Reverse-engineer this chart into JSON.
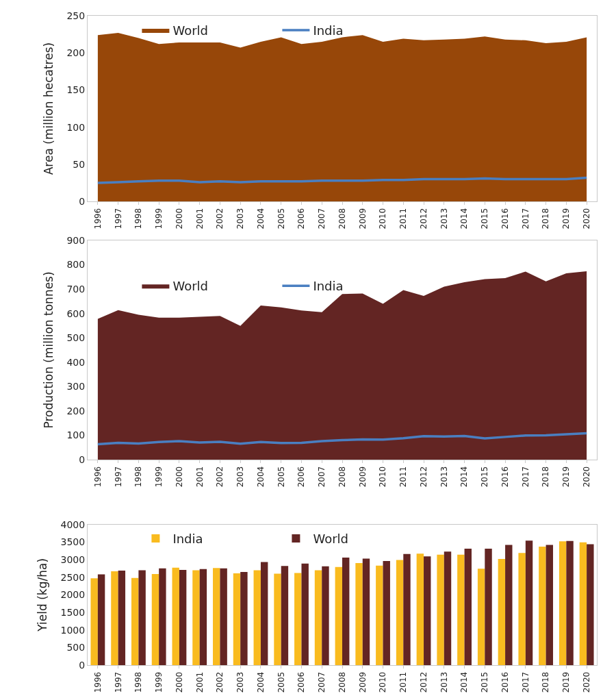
{
  "chart_data": [
    {
      "type": "area",
      "ylabel": "Area (million hecatres)",
      "categories": [
        "1996",
        "1997",
        "1998",
        "1999",
        "2000",
        "2001",
        "2002",
        "2003",
        "2004",
        "2005",
        "2006",
        "2007",
        "2008",
        "2009",
        "2010",
        "2011",
        "2012",
        "2013",
        "2014",
        "2015",
        "2016",
        "2017",
        "2018",
        "2019",
        "2020"
      ],
      "ylim": [
        0,
        250
      ],
      "yticks": [
        0,
        50,
        100,
        150,
        200,
        250
      ],
      "legend": "top left",
      "series": [
        {
          "name": "World",
          "color": "#974709",
          "values": [
            224,
            227,
            220,
            212,
            214,
            214,
            214,
            207,
            215,
            221,
            212,
            215,
            221,
            224,
            215,
            219,
            217,
            218,
            219,
            222,
            218,
            217,
            213,
            215,
            221
          ]
        },
        {
          "name": "India",
          "type": "line",
          "color": "#4a7fc1",
          "values": [
            25,
            26,
            27,
            28,
            28,
            26,
            27,
            26,
            27,
            27,
            27,
            28,
            28,
            28,
            29,
            29,
            30,
            30,
            30,
            31,
            30,
            30,
            30,
            30,
            32
          ]
        }
      ]
    },
    {
      "type": "area",
      "ylabel": "Production (million tonnes)",
      "categories": [
        "1996",
        "1997",
        "1998",
        "1999",
        "2000",
        "2001",
        "2002",
        "2003",
        "2004",
        "2005",
        "2006",
        "2007",
        "2008",
        "2009",
        "2010",
        "2011",
        "2012",
        "2013",
        "2014",
        "2015",
        "2016",
        "2017",
        "2018",
        "2019",
        "2020"
      ],
      "ylim": [
        0,
        900
      ],
      "yticks": [
        0,
        100,
        200,
        300,
        400,
        500,
        600,
        700,
        800,
        900
      ],
      "legend": "top left",
      "series": [
        {
          "name": "World",
          "color": "#632523",
          "values": [
            578,
            614,
            595,
            583,
            583,
            586,
            590,
            549,
            633,
            625,
            612,
            605,
            680,
            682,
            640,
            696,
            672,
            710,
            728,
            741,
            745,
            772,
            732,
            765,
            773
          ]
        },
        {
          "name": "India",
          "type": "line",
          "color": "#4a7fc1",
          "values": [
            63,
            69,
            66,
            72,
            76,
            70,
            73,
            65,
            72,
            68,
            69,
            76,
            80,
            83,
            82,
            88,
            96,
            95,
            97,
            87,
            93,
            99,
            100,
            104,
            108
          ]
        }
      ]
    },
    {
      "type": "bar",
      "ylabel": "Yield (kg/ha)",
      "categories": [
        "1996",
        "1997",
        "1998",
        "1999",
        "2000",
        "2001",
        "2002",
        "2003",
        "2004",
        "2005",
        "2006",
        "2007",
        "2008",
        "2009",
        "2010",
        "2011",
        "2012",
        "2013",
        "2014",
        "2015",
        "2016",
        "2017",
        "2018",
        "2019",
        "2020"
      ],
      "ylim": [
        0,
        4000
      ],
      "yticks": [
        0,
        500,
        1000,
        1500,
        2000,
        2500,
        3000,
        3500,
        4000
      ],
      "legend": "top left",
      "series": [
        {
          "name": "India",
          "color": "#f9bb1f",
          "values": [
            2470,
            2670,
            2480,
            2590,
            2770,
            2700,
            2760,
            2610,
            2700,
            2600,
            2620,
            2700,
            2790,
            2900,
            2830,
            2990,
            3170,
            3140,
            3140,
            2740,
            3020,
            3190,
            3370,
            3520,
            3490
          ]
        },
        {
          "name": "World",
          "color": "#632523",
          "values": [
            2580,
            2690,
            2700,
            2750,
            2710,
            2730,
            2750,
            2650,
            2930,
            2820,
            2890,
            2810,
            3060,
            3030,
            2960,
            3160,
            3090,
            3230,
            3310,
            3310,
            3420,
            3540,
            3420,
            3530,
            3440
          ]
        }
      ]
    }
  ]
}
